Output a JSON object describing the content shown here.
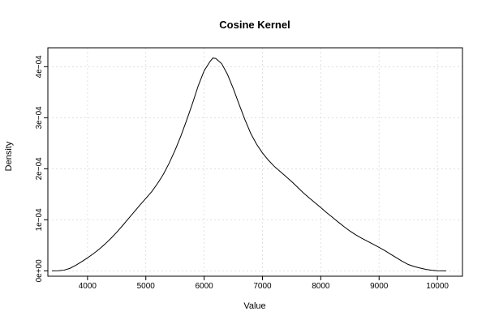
{
  "chart_data": {
    "type": "line",
    "title": "Cosine Kernel",
    "xlabel": "Value",
    "ylabel": "Density",
    "xlim": [
      3320,
      10430
    ],
    "ylim": [
      -1.05e-05,
      0.000437
    ],
    "xticks": [
      4000,
      5000,
      6000,
      7000,
      8000,
      9000,
      10000
    ],
    "xtick_labels": [
      "4000",
      "5000",
      "6000",
      "7000",
      "8000",
      "9000",
      "10000"
    ],
    "yticks": [
      0,
      0.0001,
      0.0002,
      0.0003,
      0.0004
    ],
    "ytick_labels": [
      "0e+00",
      "1e−04",
      "2e−04",
      "3e−04",
      "4e−04"
    ],
    "grid": true,
    "series": [
      {
        "x": [
          3390,
          3500,
          3600,
          3700,
          3800,
          3900,
          4000,
          4100,
          4200,
          4300,
          4400,
          4500,
          4600,
          4700,
          4800,
          4900,
          5000,
          5100,
          5200,
          5300,
          5400,
          5500,
          5600,
          5700,
          5800,
          5900,
          6000,
          6100,
          6150,
          6200,
          6300,
          6400,
          6500,
          6600,
          6700,
          6800,
          6900,
          7000,
          7100,
          7200,
          7300,
          7400,
          7500,
          7600,
          7700,
          7800,
          7900,
          8000,
          8100,
          8200,
          8300,
          8400,
          8500,
          8600,
          8700,
          8800,
          8900,
          9000,
          9100,
          9200,
          9300,
          9400,
          9500,
          9600,
          9700,
          9800,
          9900,
          10000,
          10100,
          10150
        ],
        "y": [
          0.0,
          2e-07,
          1.5e-06,
          5e-06,
          1.1e-05,
          1.8e-05,
          2.55e-05,
          3.35e-05,
          4.25e-05,
          5.25e-05,
          6.35e-05,
          7.55e-05,
          8.85e-05,
          0.000102,
          0.0001155,
          0.000129,
          0.000142,
          0.000155,
          0.000171,
          0.000189,
          0.000211,
          0.000236,
          0.000264,
          0.000295,
          0.000328,
          0.000363,
          0.000392,
          0.00041,
          0.000417,
          0.000416,
          0.000406,
          0.000385,
          0.000357,
          0.000326,
          0.000296,
          0.000269,
          0.000248,
          0.000231,
          0.000217,
          0.000205,
          0.000195,
          0.000185,
          0.000175,
          0.000164,
          0.000153,
          0.000143,
          0.0001335,
          0.000124,
          0.000114,
          0.000105,
          9.55e-05,
          8.65e-05,
          7.8e-05,
          7.05e-05,
          6.4e-05,
          5.8e-05,
          5.2e-05,
          4.6e-05,
          3.95e-05,
          3.25e-05,
          2.55e-05,
          1.85e-05,
          1.25e-05,
          8.5e-06,
          5.5e-06,
          3e-06,
          1.2e-06,
          3e-07,
          0.0,
          0.0
        ]
      }
    ]
  }
}
